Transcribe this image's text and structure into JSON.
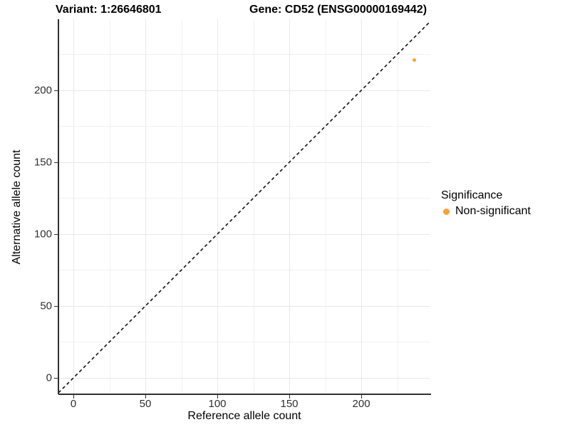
{
  "figure": {
    "title_left": "Variant: 1:26646801",
    "title_right": "Gene: CD52 (ENSG00000169442)"
  },
  "chart_data": {
    "type": "scatter",
    "title": "Variant: 1:26646801    Gene: CD52 (ENSG00000169442)",
    "xlabel": "Reference allele count",
    "ylabel": "Alternative allele count",
    "xlim": [
      -10.4,
      248.0
    ],
    "ylim": [
      -10.9,
      249.5
    ],
    "x_ticks": [
      0,
      50,
      100,
      150,
      200
    ],
    "y_ticks": [
      0,
      50,
      100,
      150,
      200
    ],
    "x_minor_ticks": [
      25,
      75,
      125,
      175,
      225
    ],
    "y_minor_ticks": [
      25,
      75,
      125,
      175,
      225
    ],
    "grid": true,
    "series": [
      {
        "name": "Non-significant",
        "points": [
          {
            "x": 237,
            "y": 221
          }
        ]
      }
    ],
    "reference_line": {
      "type": "identity",
      "slope": 1,
      "intercept": 0,
      "style": "dashed"
    },
    "legend": {
      "title": "Significance",
      "position": "right",
      "entries": [
        {
          "label": "Non-significant",
          "marker": "circle"
        }
      ]
    }
  },
  "colors": {
    "point": "#F8A332",
    "grid_major": "#e8e8e8",
    "grid_minor": "#f1f1f1",
    "axis_line": "#2f2f2f",
    "tick_label": "#2f2f2f",
    "reference_line": "#111111",
    "background": "#ffffff"
  }
}
